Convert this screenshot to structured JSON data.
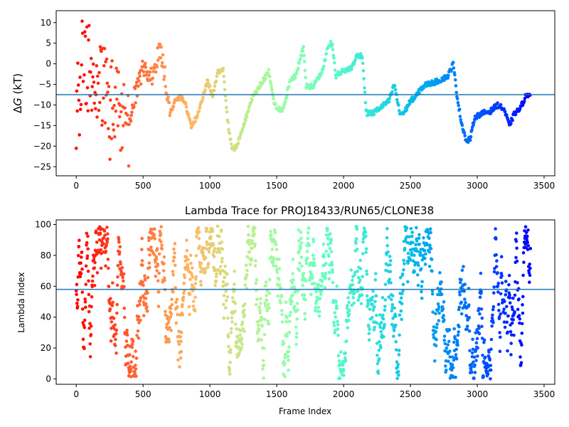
{
  "chart_data": [
    {
      "type": "scatter",
      "title": "",
      "xlabel": "",
      "ylabel": "ΔG (kT)",
      "ylabel_parts": {
        "prefix": "Δ",
        "var": "G",
        "suffix": " (kT)"
      },
      "xlim": [
        -150,
        3580
      ],
      "ylim": [
        -27.2,
        12.9
      ],
      "xticks": [
        0,
        500,
        1000,
        1500,
        2000,
        2500,
        3000,
        3500
      ],
      "yticks": [
        10,
        5,
        0,
        -5,
        -10,
        -15,
        -20,
        -25
      ],
      "hline": -7.5,
      "hline_color": "#1f77b4",
      "colormap": "rainbow (late frames purple → early frames red)",
      "grid": false,
      "legend": "none",
      "frames_total": 3400,
      "dg_profile": [
        [
          20,
          -10
        ],
        [
          50,
          5
        ],
        [
          100,
          -3
        ],
        [
          150,
          -8
        ],
        [
          200,
          -5
        ],
        [
          250,
          -12
        ],
        [
          300,
          -9
        ],
        [
          350,
          -12
        ],
        [
          380,
          -18
        ],
        [
          420,
          -9
        ],
        [
          460,
          -6
        ],
        [
          500,
          -1
        ],
        [
          540,
          -2
        ],
        [
          580,
          -3
        ],
        [
          620,
          4
        ],
        [
          660,
          -2
        ],
        [
          700,
          -12
        ],
        [
          740,
          -9
        ],
        [
          780,
          -8
        ],
        [
          820,
          -10
        ],
        [
          860,
          -15.5
        ],
        [
          900,
          -13
        ],
        [
          940,
          -9
        ],
        [
          980,
          -4
        ],
        [
          1020,
          -8
        ],
        [
          1060,
          -2
        ],
        [
          1100,
          -1.5
        ],
        [
          1140,
          -16
        ],
        [
          1170,
          -21
        ],
        [
          1200,
          -20
        ],
        [
          1240,
          -16
        ],
        [
          1280,
          -12
        ],
        [
          1320,
          -8
        ],
        [
          1360,
          -6
        ],
        [
          1400,
          -4
        ],
        [
          1440,
          -2
        ],
        [
          1470,
          -8
        ],
        [
          1500,
          -11
        ],
        [
          1550,
          -11
        ],
        [
          1600,
          -4
        ],
        [
          1640,
          -3
        ],
        [
          1680,
          2
        ],
        [
          1700,
          4
        ],
        [
          1720,
          -5.5
        ],
        [
          1770,
          -5.5
        ],
        [
          1800,
          -4
        ],
        [
          1840,
          -2
        ],
        [
          1880,
          4
        ],
        [
          1900,
          5
        ],
        [
          1920,
          4
        ],
        [
          1940,
          -3
        ],
        [
          1980,
          -2
        ],
        [
          2020,
          -1.5
        ],
        [
          2060,
          -1
        ],
        [
          2100,
          2
        ],
        [
          2140,
          2
        ],
        [
          2170,
          -12
        ],
        [
          2220,
          -12
        ],
        [
          2260,
          -11
        ],
        [
          2300,
          -10
        ],
        [
          2340,
          -9
        ],
        [
          2380,
          -5
        ],
        [
          2420,
          -12
        ],
        [
          2450,
          -12
        ],
        [
          2500,
          -9
        ],
        [
          2540,
          -8
        ],
        [
          2580,
          -6
        ],
        [
          2620,
          -5
        ],
        [
          2680,
          -4.5
        ],
        [
          2720,
          -4
        ],
        [
          2780,
          -3
        ],
        [
          2820,
          0
        ],
        [
          2850,
          -8
        ],
        [
          2880,
          -14
        ],
        [
          2920,
          -19
        ],
        [
          2950,
          -18
        ],
        [
          2980,
          -13
        ],
        [
          3040,
          -12
        ],
        [
          3100,
          -11.5
        ],
        [
          3150,
          -10
        ],
        [
          3200,
          -11
        ],
        [
          3240,
          -15
        ],
        [
          3280,
          -12
        ],
        [
          3320,
          -11
        ],
        [
          3360,
          -8
        ],
        [
          3400,
          -7
        ]
      ]
    },
    {
      "type": "scatter",
      "title": "Lambda Trace for PROJ18433/RUN65/CLONE38",
      "xlabel": "Frame Index",
      "ylabel": "Lambda Index",
      "xlim": [
        -150,
        3580
      ],
      "ylim": [
        -3.5,
        103
      ],
      "xticks": [
        0,
        500,
        1000,
        1500,
        2000,
        2500,
        3000,
        3500
      ],
      "yticks": [
        0,
        20,
        40,
        60,
        80,
        100
      ],
      "hline": 58,
      "hline_color": "#1f77b4",
      "colormap": "rainbow (late frames purple → early frames red)",
      "grid": false,
      "legend": "none",
      "frames_total": 3400,
      "lambda_range": [
        0,
        99
      ]
    }
  ]
}
